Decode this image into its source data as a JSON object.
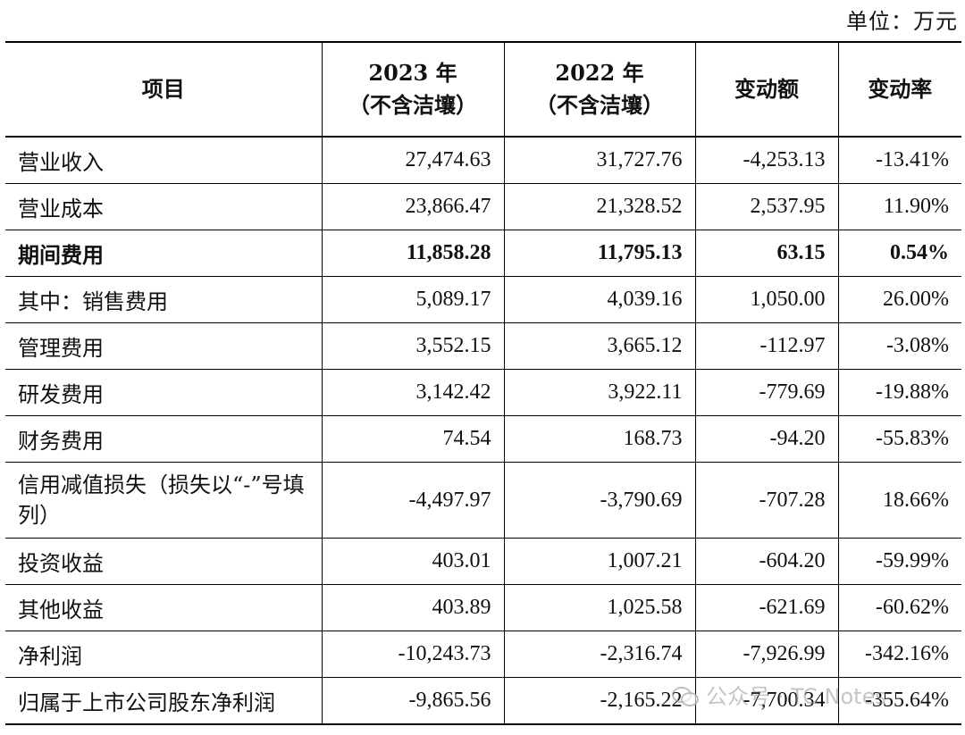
{
  "unit_label": "单位：万元",
  "table": {
    "headers": {
      "item": "项目",
      "y2023": "2023 年",
      "y2023_sub": "（不含洁壤）",
      "y2022": "2022 年",
      "y2022_sub": "（不含洁壤）",
      "change": "变动额",
      "rate": "变动率"
    },
    "rows": [
      {
        "item": "营业收入",
        "y2023": "27,474.63",
        "y2022": "31,727.76",
        "change": "-4,253.13",
        "rate": "-13.41%"
      },
      {
        "item": "营业成本",
        "y2023": "23,866.47",
        "y2022": "21,328.52",
        "change": "2,537.95",
        "rate": "11.90%"
      },
      {
        "item": "期间费用",
        "y2023": "11,858.28",
        "y2022": "11,795.13",
        "change": "63.15",
        "rate": "0.54%"
      },
      {
        "item": "其中：销售费用",
        "y2023": "5,089.17",
        "y2022": "4,039.16",
        "change": "1,050.00",
        "rate": "26.00%"
      },
      {
        "item": "管理费用",
        "y2023": "3,552.15",
        "y2022": "3,665.12",
        "change": "-112.97",
        "rate": "-3.08%"
      },
      {
        "item": "研发费用",
        "y2023": "3,142.42",
        "y2022": "3,922.11",
        "change": "-779.69",
        "rate": "-19.88%"
      },
      {
        "item": "财务费用",
        "y2023": "74.54",
        "y2022": "168.73",
        "change": "-94.20",
        "rate": "-55.83%"
      },
      {
        "item": "信用减值损失（损失以“-”号填列）",
        "y2023": "-4,497.97",
        "y2022": "-3,790.69",
        "change": "-707.28",
        "rate": "18.66%"
      },
      {
        "item": "投资收益",
        "y2023": "403.01",
        "y2022": "1,007.21",
        "change": "-604.20",
        "rate": "-59.99%"
      },
      {
        "item": "其他收益",
        "y2023": "403.89",
        "y2022": "1,025.58",
        "change": "-621.69",
        "rate": "-60.62%"
      },
      {
        "item": "净利润",
        "y2023": "-10,243.73",
        "y2022": "-2,316.74",
        "change": "-7,926.99",
        "rate": "-342.16%"
      },
      {
        "item": "归属于上市公司股东净利润",
        "y2023": "-9,865.56",
        "y2022": "-2,165.22",
        "change": "-7,700.34",
        "rate": "-355.64%"
      }
    ]
  },
  "watermark": {
    "text": "公众号 · TC Notes",
    "icon": "wechat-icon"
  }
}
